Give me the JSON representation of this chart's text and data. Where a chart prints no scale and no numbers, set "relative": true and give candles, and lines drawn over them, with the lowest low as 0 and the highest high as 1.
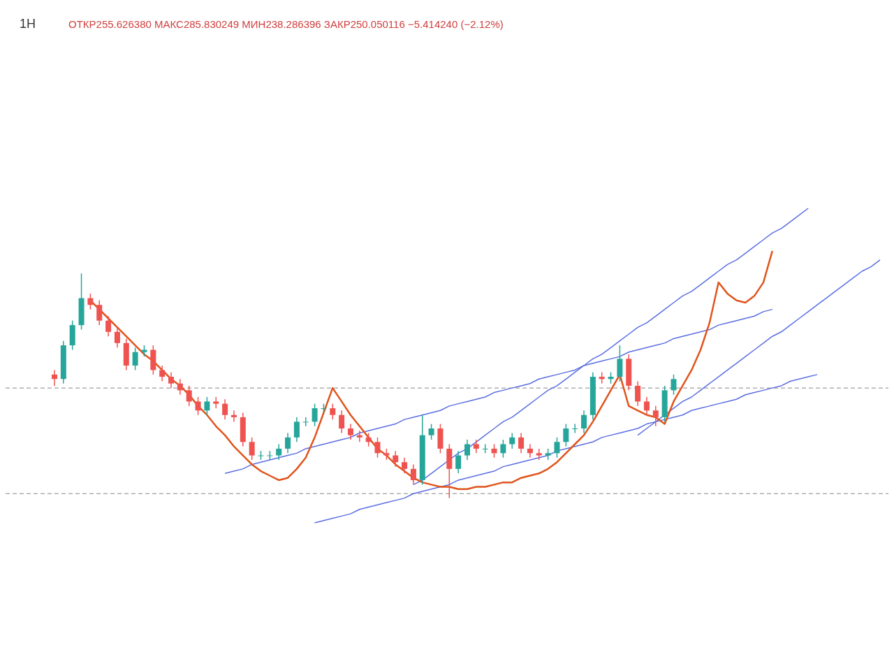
{
  "chart_data": {
    "type": "candlestick",
    "relative": true,
    "title": "1H",
    "annotations": [
      "ОТКР255.626380 МАКС285.830249 МИН238.286396 ЗАКР250.050116 −5.414240 (−2.12%)"
    ],
    "categories": [
      null,
      null,
      null,
      null,
      null,
      null,
      null,
      null,
      null,
      null,
      null,
      null,
      null,
      null,
      null,
      null,
      null,
      null,
      null,
      null,
      null,
      null,
      null,
      null,
      null,
      null,
      null,
      null,
      null,
      null,
      null,
      null,
      null,
      null,
      null,
      null,
      null,
      null,
      null,
      null,
      null,
      null,
      null,
      null,
      null,
      null,
      null,
      null,
      null,
      null,
      null,
      null,
      null,
      null,
      null,
      null,
      null,
      null,
      null,
      null,
      null,
      null,
      null,
      null,
      null,
      null,
      null,
      null,
      null,
      null,
      null,
      null,
      null,
      null,
      null,
      null,
      null,
      null,
      null,
      null,
      null,
      null,
      null,
      null,
      null,
      null,
      null,
      null,
      null,
      null,
      null,
      null,
      null
    ],
    "ohlc": [
      [
        0.55,
        0.57,
        0.5,
        0.53
      ],
      [
        0.53,
        0.7,
        0.51,
        0.68
      ],
      [
        0.68,
        0.79,
        0.66,
        0.77
      ],
      [
        0.77,
        1.0,
        0.75,
        0.89
      ],
      [
        0.89,
        0.91,
        0.84,
        0.86
      ],
      [
        0.86,
        0.88,
        0.77,
        0.79
      ],
      [
        0.79,
        0.81,
        0.72,
        0.74
      ],
      [
        0.74,
        0.76,
        0.67,
        0.69
      ],
      [
        0.69,
        0.71,
        0.57,
        0.59
      ],
      [
        0.59,
        0.67,
        0.57,
        0.65
      ],
      [
        0.65,
        0.68,
        0.63,
        0.66
      ],
      [
        0.66,
        0.68,
        0.55,
        0.57
      ],
      [
        0.57,
        0.59,
        0.52,
        0.54
      ],
      [
        0.54,
        0.56,
        0.49,
        0.51
      ],
      [
        0.51,
        0.53,
        0.46,
        0.48
      ],
      [
        0.48,
        0.5,
        0.41,
        0.43
      ],
      [
        0.43,
        0.45,
        0.37,
        0.39
      ],
      [
        0.39,
        0.45,
        0.37,
        0.43
      ],
      [
        0.43,
        0.45,
        0.4,
        0.42
      ],
      [
        0.42,
        0.44,
        0.35,
        0.37
      ],
      [
        0.37,
        0.39,
        0.34,
        0.36
      ],
      [
        0.36,
        0.38,
        0.23,
        0.25
      ],
      [
        0.25,
        0.27,
        0.17,
        0.19
      ],
      [
        0.19,
        0.21,
        0.17,
        0.19
      ],
      [
        0.19,
        0.21,
        0.17,
        0.19
      ],
      [
        0.19,
        0.24,
        0.17,
        0.22
      ],
      [
        0.22,
        0.29,
        0.2,
        0.27
      ],
      [
        0.27,
        0.36,
        0.25,
        0.34
      ],
      [
        0.34,
        0.36,
        0.32,
        0.34
      ],
      [
        0.34,
        0.42,
        0.32,
        0.4
      ],
      [
        0.4,
        0.42,
        0.38,
        0.4
      ],
      [
        0.4,
        0.42,
        0.35,
        0.37
      ],
      [
        0.37,
        0.39,
        0.29,
        0.31
      ],
      [
        0.31,
        0.33,
        0.26,
        0.28
      ],
      [
        0.28,
        0.3,
        0.25,
        0.27
      ],
      [
        0.27,
        0.29,
        0.23,
        0.25
      ],
      [
        0.25,
        0.27,
        0.18,
        0.2
      ],
      [
        0.2,
        0.22,
        0.17,
        0.19
      ],
      [
        0.19,
        0.21,
        0.14,
        0.16
      ],
      [
        0.16,
        0.18,
        0.11,
        0.13
      ],
      [
        0.13,
        0.15,
        0.06,
        0.08
      ],
      [
        0.08,
        0.37,
        0.06,
        0.28
      ],
      [
        0.28,
        0.33,
        0.26,
        0.31
      ],
      [
        0.31,
        0.33,
        0.2,
        0.22
      ],
      [
        0.22,
        0.24,
        0.0,
        0.13
      ],
      [
        0.13,
        0.21,
        0.11,
        0.19
      ],
      [
        0.19,
        0.26,
        0.17,
        0.24
      ],
      [
        0.24,
        0.26,
        0.2,
        0.22
      ],
      [
        0.22,
        0.24,
        0.2,
        0.22
      ],
      [
        0.22,
        0.24,
        0.18,
        0.2
      ],
      [
        0.2,
        0.26,
        0.18,
        0.24
      ],
      [
        0.24,
        0.29,
        0.22,
        0.27
      ],
      [
        0.27,
        0.29,
        0.2,
        0.22
      ],
      [
        0.22,
        0.24,
        0.18,
        0.2
      ],
      [
        0.2,
        0.22,
        0.17,
        0.19
      ],
      [
        0.19,
        0.22,
        0.17,
        0.2
      ],
      [
        0.2,
        0.27,
        0.18,
        0.25
      ],
      [
        0.25,
        0.33,
        0.23,
        0.31
      ],
      [
        0.31,
        0.33,
        0.29,
        0.31
      ],
      [
        0.31,
        0.39,
        0.29,
        0.37
      ],
      [
        0.37,
        0.56,
        0.35,
        0.54
      ],
      [
        0.54,
        0.56,
        0.51,
        0.53
      ],
      [
        0.53,
        0.56,
        0.51,
        0.54
      ],
      [
        0.54,
        0.68,
        0.52,
        0.62
      ],
      [
        0.62,
        0.64,
        0.48,
        0.5
      ],
      [
        0.5,
        0.52,
        0.41,
        0.43
      ],
      [
        0.43,
        0.45,
        0.37,
        0.39
      ],
      [
        0.39,
        0.41,
        0.32,
        0.36
      ],
      [
        0.36,
        0.5,
        0.34,
        0.48
      ],
      [
        0.48,
        0.55,
        0.46,
        0.53
      ],
      null,
      null,
      null,
      null,
      null,
      null,
      null,
      null,
      null,
      null,
      null,
      null,
      null,
      null,
      null,
      null,
      null,
      null,
      null,
      null,
      null,
      null,
      null
    ],
    "colors": [
      "#ef5350",
      "#26a69a",
      "#26a69a",
      "#26a69a",
      "#ef5350",
      "#ef5350",
      "#ef5350",
      "#ef5350",
      "#ef5350",
      "#26a69a",
      "#26a69a",
      "#ef5350",
      "#ef5350",
      "#ef5350",
      "#ef5350",
      "#ef5350",
      "#ef5350",
      "#26a69a",
      "#ef5350",
      "#ef5350",
      "#ef5350",
      "#ef5350",
      "#ef5350",
      "#26a69a",
      "#26a69a",
      "#26a69a",
      "#26a69a",
      "#26a69a",
      "#26a69a",
      "#26a69a",
      "#26a69a",
      "#ef5350",
      "#ef5350",
      "#ef5350",
      "#ef5350",
      "#ef5350",
      "#ef5350",
      "#ef5350",
      "#ef5350",
      "#ef5350",
      "#ef5350",
      "#26a69a",
      "#26a69a",
      "#ef5350",
      "#ef5350",
      "#26a69a",
      "#26a69a",
      "#ef5350",
      "#26a69a",
      "#ef5350",
      "#26a69a",
      "#26a69a",
      "#ef5350",
      "#ef5350",
      "#ef5350",
      "#26a69a",
      "#26a69a",
      "#26a69a",
      "#26a69a",
      "#26a69a",
      "#26a69a",
      "#ef5350",
      "#26a69a",
      "#26a69a",
      "#ef5350",
      "#ef5350",
      "#ef5350",
      "#ef5350",
      "#26a69a",
      "#26a69a",
      null,
      null,
      null,
      null,
      null,
      null,
      null,
      null,
      null,
      null,
      null,
      null,
      null,
      null,
      null,
      null,
      null,
      null,
      null,
      null,
      null,
      null,
      null
    ],
    "series": [
      {
        "type": "line",
        "color": "#5b6ee1",
        "values": [
          null,
          null,
          null,
          null,
          null,
          null,
          null,
          null,
          null,
          null,
          null,
          null,
          null,
          null,
          null,
          null,
          null,
          null,
          null,
          0.11,
          0.12,
          0.13,
          0.15,
          0.16,
          0.17,
          0.18,
          0.19,
          0.2,
          0.22,
          0.23,
          0.24,
          0.25,
          0.26,
          0.27,
          0.29,
          0.3,
          0.31,
          0.32,
          0.33,
          0.35,
          0.36,
          0.37,
          0.38,
          0.39,
          0.41,
          0.42,
          0.43,
          0.44,
          0.45,
          0.47,
          0.48,
          0.49,
          0.5,
          0.51,
          0.53,
          0.54,
          0.55,
          0.56,
          0.57,
          0.59,
          0.6,
          0.61,
          0.62,
          0.63,
          0.65,
          0.66,
          0.67,
          0.68,
          0.69,
          0.71,
          0.72,
          0.73,
          0.74,
          0.75,
          0.77,
          0.78,
          0.79,
          0.8,
          0.81,
          0.83,
          0.84,
          null,
          null,
          null,
          null,
          null,
          null,
          null,
          null,
          null,
          null,
          null,
          null
        ]
      },
      {
        "type": "line",
        "color": "#5b6ee1",
        "values": [
          null,
          null,
          null,
          null,
          null,
          null,
          null,
          null,
          null,
          null,
          null,
          null,
          null,
          null,
          null,
          null,
          null,
          null,
          null,
          null,
          null,
          null,
          null,
          null,
          null,
          null,
          null,
          null,
          null,
          -0.11,
          -0.1,
          -0.09,
          -0.08,
          -0.07,
          -0.05,
          -0.04,
          -0.03,
          -0.02,
          -0.01,
          0.0,
          0.02,
          0.03,
          0.04,
          0.05,
          0.06,
          0.08,
          0.09,
          0.1,
          0.11,
          0.12,
          0.14,
          0.15,
          0.16,
          0.17,
          0.18,
          0.19,
          0.21,
          0.22,
          0.23,
          0.24,
          0.25,
          0.27,
          0.28,
          0.29,
          0.3,
          0.31,
          0.33,
          0.34,
          0.35,
          0.36,
          0.37,
          0.39,
          0.4,
          0.41,
          0.42,
          0.43,
          0.44,
          0.46,
          0.47,
          0.48,
          0.49,
          0.5,
          0.52,
          0.53,
          0.54,
          0.55,
          null,
          null,
          null,
          null,
          null,
          null,
          null
        ]
      },
      {
        "type": "line",
        "color": "#5b6ee1",
        "values": [
          null,
          null,
          null,
          null,
          null,
          null,
          null,
          null,
          null,
          null,
          null,
          null,
          null,
          null,
          null,
          null,
          null,
          null,
          null,
          null,
          null,
          null,
          null,
          null,
          null,
          null,
          null,
          null,
          null,
          null,
          null,
          null,
          null,
          null,
          null,
          null,
          null,
          null,
          null,
          null,
          0.06,
          0.08,
          0.11,
          0.14,
          0.17,
          0.2,
          0.22,
          0.25,
          0.28,
          0.31,
          0.34,
          0.36,
          0.39,
          0.42,
          0.45,
          0.48,
          0.5,
          0.53,
          0.56,
          0.59,
          0.62,
          0.64,
          0.67,
          0.7,
          0.73,
          0.76,
          0.78,
          0.81,
          0.84,
          0.87,
          0.9,
          0.92,
          0.95,
          0.98,
          1.01,
          1.04,
          1.06,
          1.09,
          1.12,
          1.15,
          1.18,
          1.2,
          1.23,
          1.26,
          1.29,
          null,
          null,
          null,
          null,
          null,
          null,
          null,
          null
        ]
      },
      {
        "type": "line",
        "color": "#5b6ee1",
        "values": [
          null,
          null,
          null,
          null,
          null,
          null,
          null,
          null,
          null,
          null,
          null,
          null,
          null,
          null,
          null,
          null,
          null,
          null,
          null,
          null,
          null,
          null,
          null,
          null,
          null,
          null,
          null,
          null,
          null,
          null,
          null,
          null,
          null,
          null,
          null,
          null,
          null,
          null,
          null,
          null,
          null,
          null,
          null,
          null,
          null,
          null,
          null,
          null,
          null,
          null,
          null,
          null,
          null,
          null,
          null,
          null,
          null,
          null,
          null,
          null,
          null,
          null,
          null,
          null,
          null,
          0.28,
          0.31,
          0.34,
          0.37,
          0.4,
          0.43,
          0.45,
          0.48,
          0.51,
          0.54,
          0.57,
          0.6,
          0.63,
          0.66,
          0.69,
          0.72,
          0.74,
          0.77,
          0.8,
          0.83,
          0.86,
          0.89,
          0.92,
          0.95,
          0.98,
          1.01,
          1.03,
          1.06
        ]
      },
      {
        "type": "line",
        "color": "#e0541c",
        "values": [
          null,
          null,
          null,
          null,
          0.88,
          0.84,
          0.8,
          0.76,
          0.72,
          0.68,
          0.64,
          0.61,
          0.57,
          0.53,
          0.5,
          0.46,
          0.41,
          0.37,
          0.32,
          0.28,
          0.23,
          0.19,
          0.15,
          0.12,
          0.1,
          0.08,
          0.09,
          0.13,
          0.18,
          0.27,
          0.38,
          0.49,
          0.43,
          0.37,
          0.32,
          0.27,
          0.22,
          0.19,
          0.15,
          0.12,
          0.09,
          0.07,
          0.06,
          0.05,
          0.05,
          0.04,
          0.04,
          0.05,
          0.05,
          0.06,
          0.07,
          0.07,
          0.09,
          0.1,
          0.11,
          0.13,
          0.16,
          0.2,
          0.24,
          0.28,
          0.34,
          0.41,
          0.48,
          0.55,
          0.41,
          0.39,
          0.37,
          0.36,
          0.33,
          0.43,
          0.5,
          0.57,
          0.66,
          0.78,
          0.96,
          0.91,
          0.88,
          0.87,
          0.9,
          0.96,
          1.1,
          null,
          null,
          null,
          null,
          null,
          null,
          null,
          null,
          null,
          null,
          null,
          null
        ]
      }
    ],
    "ref_lines": [
      {
        "axis": "y",
        "value": 0.49,
        "color": "#888888",
        "line_style": "dashed"
      },
      {
        "axis": "y",
        "value": 0.02,
        "color": "#888888",
        "line_style": "dashed"
      }
    ]
  }
}
